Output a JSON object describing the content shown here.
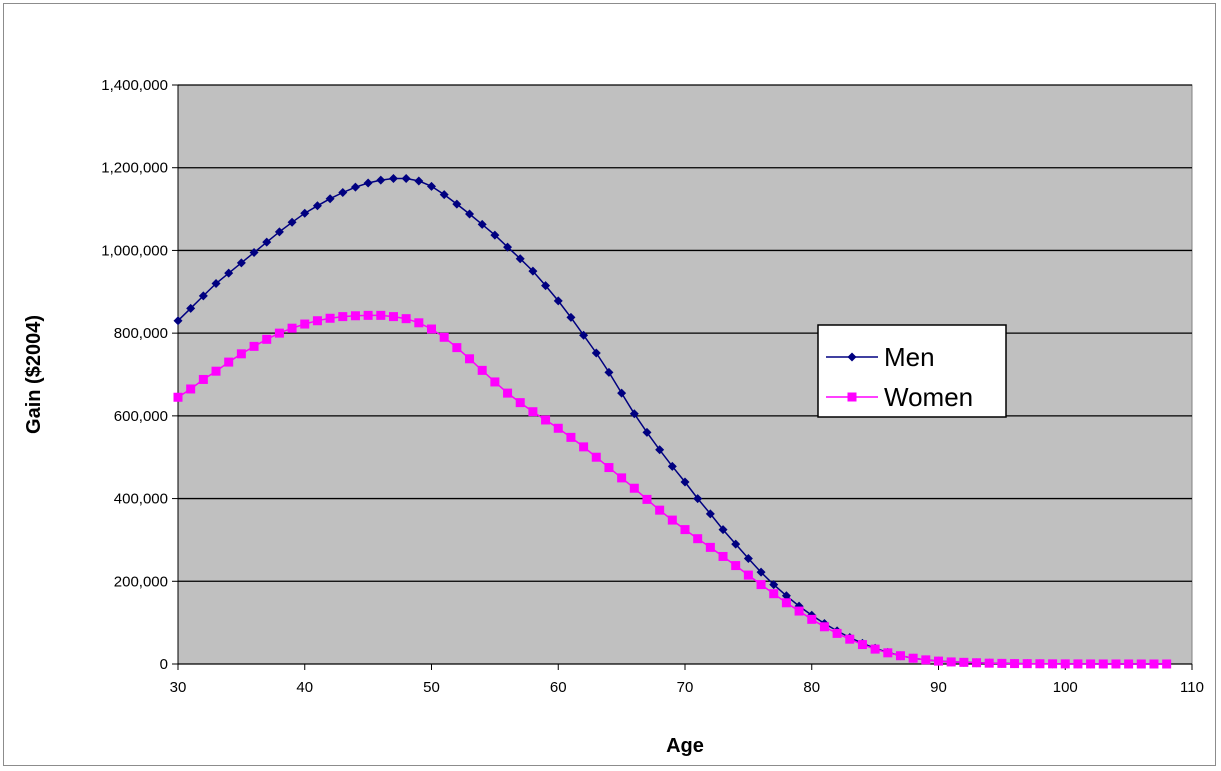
{
  "chart_data": {
    "type": "line",
    "title": "",
    "xlabel": "Age",
    "ylabel": "Gain ($2004)",
    "xlim": [
      30,
      110
    ],
    "ylim": [
      0,
      1400000
    ],
    "x_ticks": [
      "30",
      "40",
      "50",
      "60",
      "70",
      "80",
      "90",
      "100",
      "110"
    ],
    "y_ticks": [
      "0",
      "200,000",
      "400,000",
      "600,000",
      "800,000",
      "1,000,000",
      "1,200,000",
      "1,400,000"
    ],
    "grid": "horizontal",
    "legend_position": "right",
    "colors": {
      "plot_bg": "#c0c0c0",
      "men": "#000080",
      "women": "#ff00ff",
      "grid": "#000000"
    },
    "series": [
      {
        "name": "Men",
        "marker": "diamond",
        "x": [
          30,
          31,
          32,
          33,
          34,
          35,
          36,
          37,
          38,
          39,
          40,
          41,
          42,
          43,
          44,
          45,
          46,
          47,
          48,
          49,
          50,
          51,
          52,
          53,
          54,
          55,
          56,
          57,
          58,
          59,
          60,
          61,
          62,
          63,
          64,
          65,
          66,
          67,
          68,
          69,
          70,
          71,
          72,
          73,
          74,
          75,
          76,
          77,
          78,
          79,
          80,
          81,
          82,
          83,
          84,
          85,
          86,
          87,
          88,
          89,
          90,
          91,
          92,
          93,
          94,
          95,
          96,
          97,
          98,
          99,
          100,
          101,
          102,
          103,
          104,
          105,
          106,
          107,
          108
        ],
        "values": [
          830000,
          860000,
          890000,
          920000,
          945000,
          970000,
          995000,
          1020000,
          1045000,
          1068000,
          1090000,
          1108000,
          1125000,
          1140000,
          1153000,
          1163000,
          1170000,
          1174000,
          1174000,
          1168000,
          1155000,
          1135000,
          1112000,
          1088000,
          1063000,
          1037000,
          1008000,
          980000,
          950000,
          915000,
          878000,
          838000,
          795000,
          752000,
          705000,
          655000,
          605000,
          560000,
          518000,
          478000,
          440000,
          400000,
          363000,
          325000,
          290000,
          255000,
          222000,
          192000,
          165000,
          140000,
          118000,
          98000,
          80000,
          64000,
          50000,
          38000,
          28000,
          20000,
          14000,
          10000,
          7000,
          5000,
          4000,
          3000,
          2000,
          1500,
          1000,
          800,
          600,
          400,
          300,
          200,
          150,
          100,
          80,
          60,
          40,
          20,
          10
        ]
      },
      {
        "name": "Women",
        "marker": "square",
        "x": [
          30,
          31,
          32,
          33,
          34,
          35,
          36,
          37,
          38,
          39,
          40,
          41,
          42,
          43,
          44,
          45,
          46,
          47,
          48,
          49,
          50,
          51,
          52,
          53,
          54,
          55,
          56,
          57,
          58,
          59,
          60,
          61,
          62,
          63,
          64,
          65,
          66,
          67,
          68,
          69,
          70,
          71,
          72,
          73,
          74,
          75,
          76,
          77,
          78,
          79,
          80,
          81,
          82,
          83,
          84,
          85,
          86,
          87,
          88,
          89,
          90,
          91,
          92,
          93,
          94,
          95,
          96,
          97,
          98,
          99,
          100,
          101,
          102,
          103,
          104,
          105,
          106,
          107,
          108
        ],
        "values": [
          645000,
          665000,
          688000,
          708000,
          730000,
          750000,
          768000,
          785000,
          800000,
          812000,
          822000,
          830000,
          836000,
          840000,
          842000,
          843000,
          843000,
          840000,
          835000,
          825000,
          810000,
          790000,
          765000,
          738000,
          710000,
          682000,
          655000,
          632000,
          610000,
          590000,
          570000,
          548000,
          525000,
          500000,
          475000,
          450000,
          425000,
          398000,
          372000,
          348000,
          325000,
          303000,
          282000,
          260000,
          238000,
          215000,
          192000,
          170000,
          148000,
          128000,
          108000,
          90000,
          74000,
          60000,
          47000,
          36000,
          27000,
          20000,
          14000,
          10000,
          7000,
          5000,
          4000,
          3000,
          2000,
          1500,
          1000,
          800,
          600,
          400,
          300,
          200,
          150,
          100,
          80,
          60,
          40,
          20,
          10
        ]
      }
    ]
  }
}
